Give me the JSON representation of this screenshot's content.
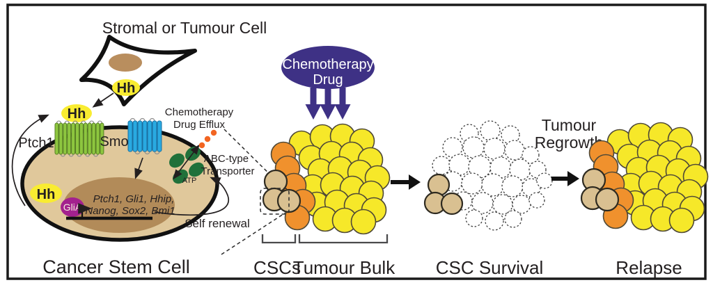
{
  "figure": {
    "stromal_cell_label": "Stromal or Tumour Cell",
    "hh_ligand": "Hh",
    "ptch1_label": "Ptch1",
    "smo_label": "Smo",
    "efflux_label_line1": "Chemotherapy",
    "efflux_label_line2": "Drug Efflux",
    "abc_label_line1": "ABC-type",
    "abc_label_line2": "Transporter",
    "atp_label": "ATP",
    "glia_label": "GliA",
    "genes_line1": "Ptch1, Gli1, Hhip,",
    "genes_line2": "Nanog, Sox2, Bmi1",
    "self_renewal_label": "Self renewal",
    "cancer_stem_cell_label": "Cancer Stem Cell",
    "chemo_drug_line1": "Chemotherapy",
    "chemo_drug_line2": "Drug",
    "cscs_label": "CSCs",
    "tumour_bulk_label": "Tumour Bulk",
    "csc_survival_label": "CSC Survival",
    "tumour_regrowth_line1": "Tumour",
    "tumour_regrowth_line2": "Regrowth",
    "relapse_label": "Relapse"
  },
  "colors": {
    "ink": "#231f20",
    "hh_yellow": "#f9ec31",
    "stromal_nucleus_brown": "#b98e5e",
    "cell_body_tan": "#e0c89b",
    "nucleus_brown": "#b28b59",
    "ptch1_green": "#8dc63f",
    "ptch1_green_dark": "#567d24",
    "smo_blue": "#29aae1",
    "smo_blue_dark": "#1a6fa0",
    "transporter_green": "#20713a",
    "efflux_dot_orange": "#f26522",
    "glia_purple": "#a3218e",
    "chemo_purple": "#3e3185",
    "tumour_yellow": "#f6e829",
    "csc_orange": "#f0912d",
    "csc_tan": "#d9c091"
  }
}
